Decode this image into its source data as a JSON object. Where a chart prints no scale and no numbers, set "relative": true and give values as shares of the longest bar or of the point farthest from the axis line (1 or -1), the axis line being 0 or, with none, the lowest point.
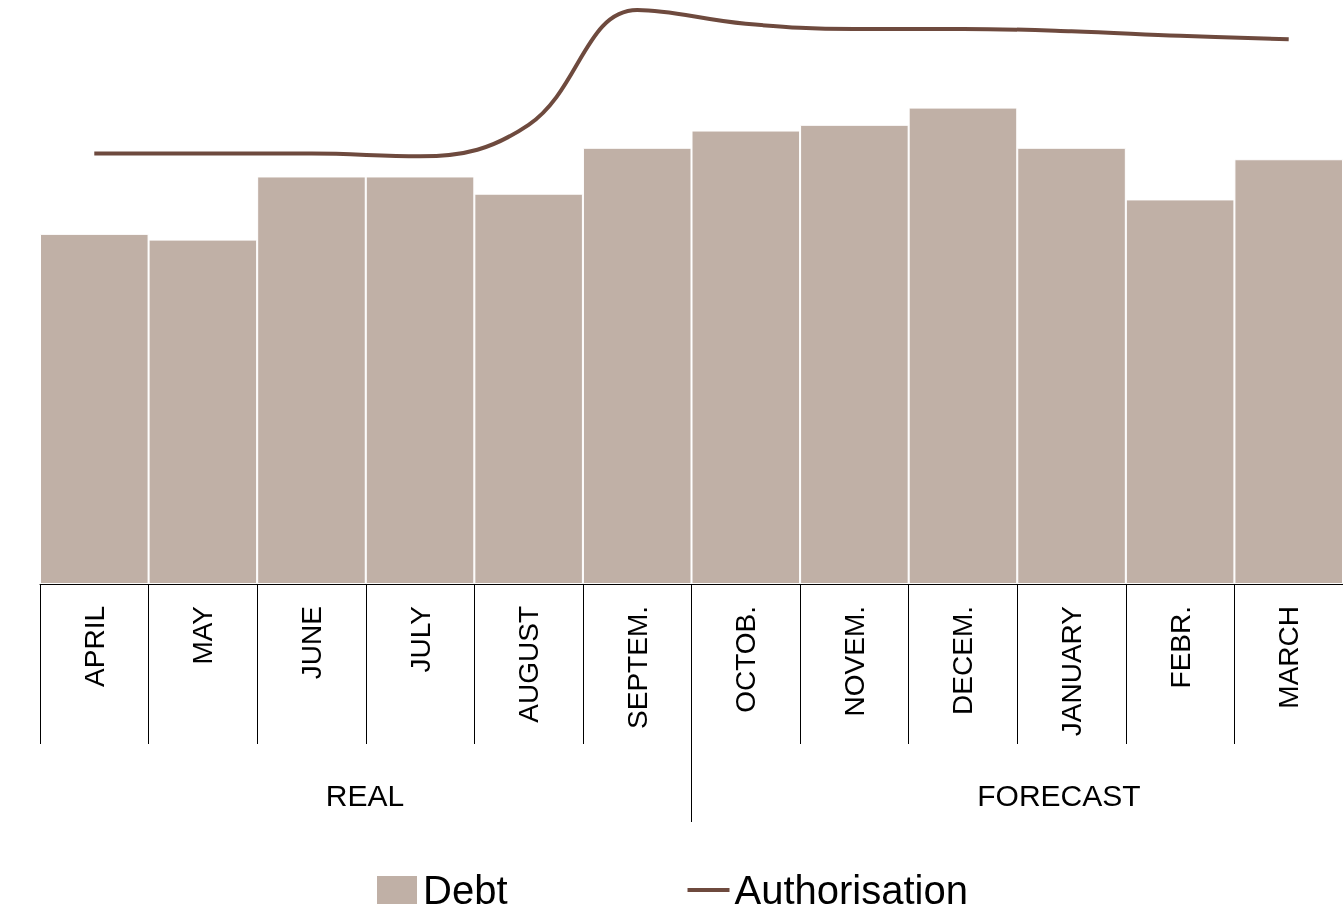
{
  "chart_data": {
    "type": "bar",
    "relative": true,
    "categories": [
      "APRIL",
      "MAY",
      "JUNE",
      "JULY",
      "AUGUST",
      "SEPTEM.",
      "OCTOB.",
      "NOVEM.",
      "DECEM.",
      "JANUARY",
      "FEBR.",
      "MARCH"
    ],
    "series": [
      {
        "name": "Debt",
        "color": "#c0b0a6",
        "values": [
          0.61,
          0.6,
          0.71,
          0.71,
          0.68,
          0.76,
          0.79,
          0.8,
          0.83,
          0.76,
          0.67,
          0.74
        ]
      },
      {
        "name": "Authorisation",
        "type": "line",
        "color": "#6e4a3e",
        "values": [
          0.75,
          0.75,
          0.75,
          0.745,
          0.8,
          1.0,
          0.976,
          0.967,
          0.967,
          0.963,
          0.955,
          0.949
        ]
      }
    ],
    "annotations": [
      "REAL",
      "FORECAST"
    ],
    "legend": "bottom"
  }
}
